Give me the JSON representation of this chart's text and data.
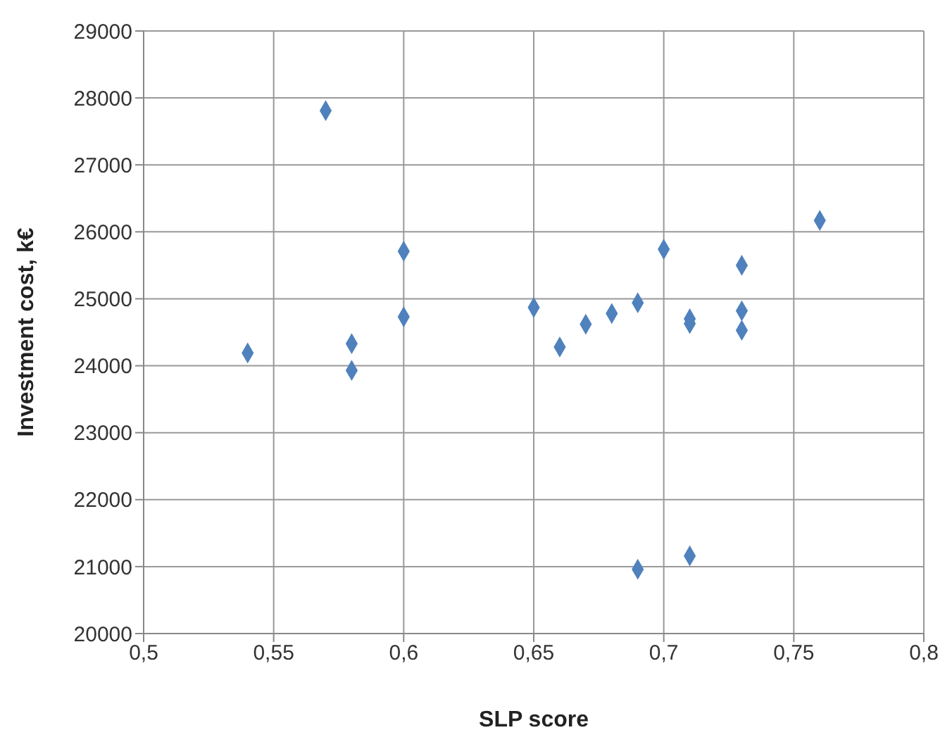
{
  "chart_data": {
    "type": "scatter",
    "xlabel": "SLP score",
    "ylabel": "Investment cost, k€",
    "marker": "diamond",
    "grid": true,
    "xlim": [
      0.5,
      0.8
    ],
    "xticks": [
      {
        "value": 0.5,
        "label": "0,5"
      },
      {
        "value": 0.55,
        "label": "0,55"
      },
      {
        "value": 0.6,
        "label": "0,6"
      },
      {
        "value": 0.65,
        "label": "0,65"
      },
      {
        "value": 0.7,
        "label": "0,7"
      },
      {
        "value": 0.75,
        "label": "0,75"
      },
      {
        "value": 0.8,
        "label": "0,8"
      }
    ],
    "ylim": [
      20000,
      29000
    ],
    "yticks": [
      20000,
      21000,
      22000,
      23000,
      24000,
      25000,
      26000,
      27000,
      28000,
      29000
    ],
    "series": [
      {
        "color": "#4f81bd",
        "x": [
          0.54,
          0.57,
          0.58,
          0.58,
          0.6,
          0.6,
          0.65,
          0.66,
          0.67,
          0.68,
          0.69,
          0.69,
          0.7,
          0.71,
          0.71,
          0.71,
          0.73,
          0.73,
          0.73,
          0.76
        ],
        "values": [
          24190,
          27810,
          24330,
          23930,
          25710,
          24730,
          24870,
          24280,
          24620,
          24780,
          24940,
          20960,
          25740,
          24700,
          24630,
          21160,
          25500,
          24820,
          24530,
          26170
        ]
      }
    ]
  }
}
